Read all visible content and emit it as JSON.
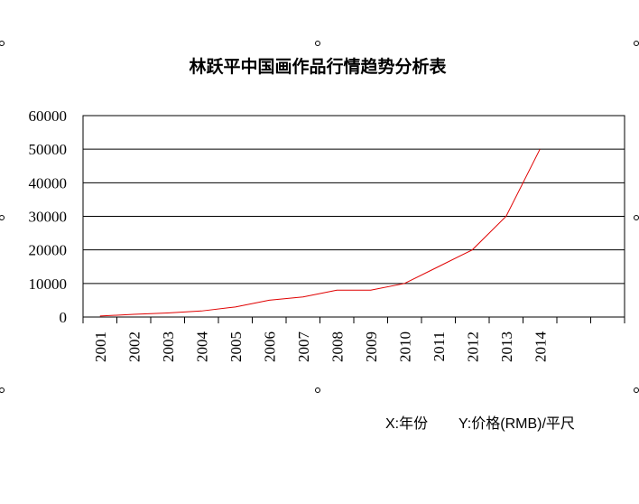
{
  "chart_data": {
    "type": "line",
    "title": "林跃平中国画作品行情趋势分析表",
    "categories": [
      "2001",
      "2002",
      "2003",
      "2004",
      "2005",
      "2006",
      "2007",
      "2008",
      "2009",
      "2010",
      "2011",
      "2012",
      "2013",
      "2014",
      null,
      null
    ],
    "series": [
      {
        "color": "#e00000",
        "values": [
          300,
          800,
          1200,
          1800,
          3000,
          5000,
          6000,
          8000,
          8000,
          10000,
          15000,
          20000,
          30000,
          50000,
          null,
          null
        ]
      }
    ],
    "ylim": [
      0,
      60000
    ],
    "yticks": [
      0,
      10000,
      20000,
      30000,
      40000,
      50000,
      60000
    ],
    "grid": true,
    "annotations": [
      "X:年份",
      "Y:价格(RMB)/平尺"
    ]
  }
}
